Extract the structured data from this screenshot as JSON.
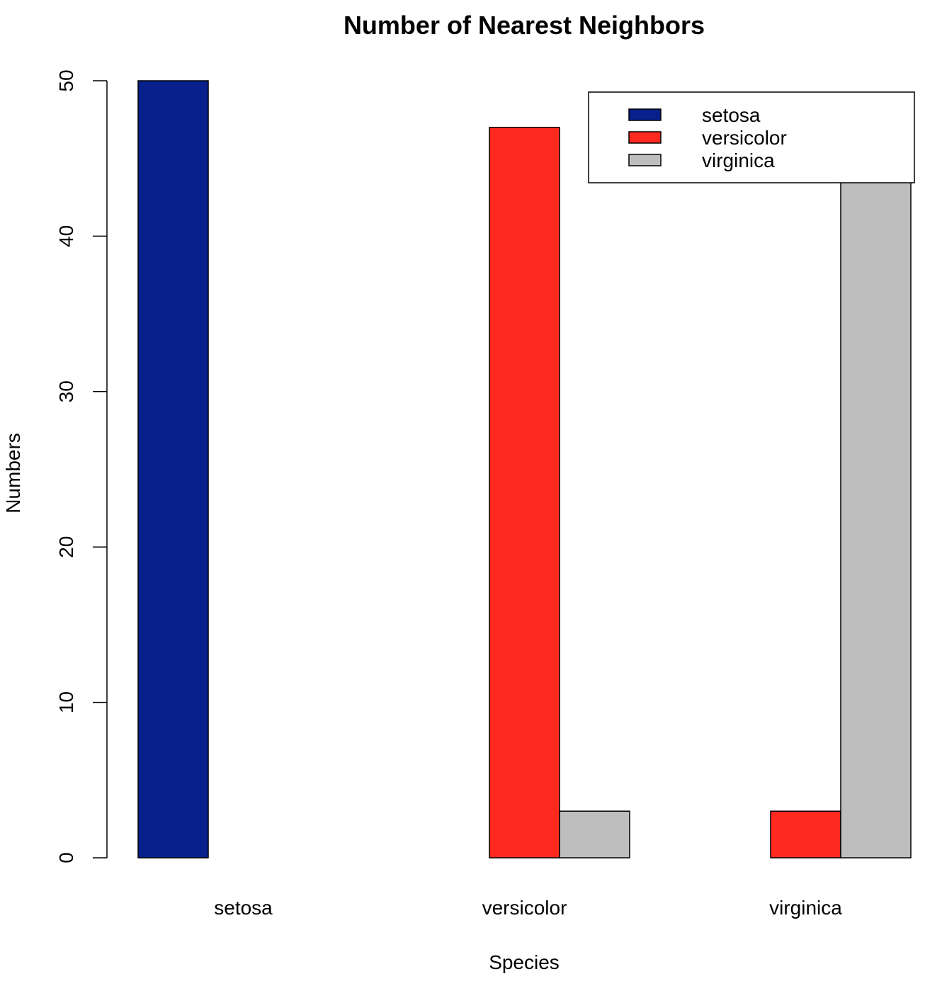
{
  "chart_data": {
    "type": "bar",
    "title": "Number of Nearest Neighbors",
    "xlabel": "Species",
    "ylabel": "Numbers",
    "categories": [
      "setosa",
      "versicolor",
      "virginica"
    ],
    "series": [
      {
        "name": "setosa",
        "color": "#08208c",
        "values": [
          50,
          0,
          0
        ]
      },
      {
        "name": "versicolor",
        "color": "#ff2a1f",
        "values": [
          0,
          47,
          3
        ]
      },
      {
        "name": "virginica",
        "color": "#bebebe",
        "values": [
          0,
          3,
          47
        ]
      }
    ],
    "ylim": [
      0,
      50
    ],
    "yticks": [
      "0",
      "10",
      "20",
      "30",
      "40",
      "50"
    ],
    "grid": false,
    "legend_position": "top-right",
    "bar_mode": "grouped"
  }
}
